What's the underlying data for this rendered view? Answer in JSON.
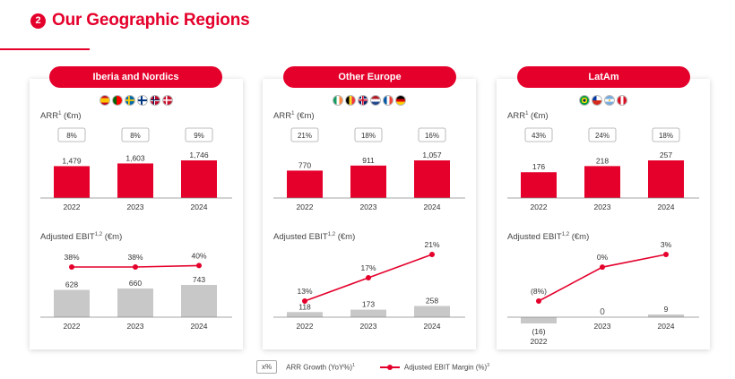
{
  "header": {
    "step": "2",
    "title": "Our Geographic Regions"
  },
  "labels": {
    "arr": "ARR",
    "arr_sup": "1",
    "arr_unit": " (€m)",
    "ebit": "Adjusted EBIT",
    "ebit_sup": "1,2",
    "ebit_unit": " (€m)"
  },
  "colors": {
    "accent": "#e4002b",
    "ebit_bar": "#c8c8c8",
    "line": "#e4002b"
  },
  "chart_data": [
    {
      "type": "bar",
      "region": "Iberia and Nordics",
      "flags": [
        "spain",
        "portugal",
        "sweden",
        "finland",
        "norway",
        "denmark"
      ],
      "categories": [
        "2022",
        "2023",
        "2024"
      ],
      "arr": {
        "values": [
          1479,
          1603,
          1746
        ],
        "labels": [
          "1,479",
          "1,603",
          "1,746"
        ],
        "growth": [
          "8%",
          "8%",
          "9%"
        ]
      },
      "ebit": {
        "values": [
          628,
          660,
          743
        ],
        "labels": [
          "628",
          "660",
          "743"
        ],
        "margin": [
          38,
          38,
          40
        ],
        "margin_labels": [
          "38%",
          "38%",
          "40%"
        ]
      }
    },
    {
      "type": "bar",
      "region": "Other Europe",
      "flags": [
        "ireland",
        "belgium",
        "uk",
        "netherlands",
        "france",
        "germany"
      ],
      "categories": [
        "2022",
        "2023",
        "2024"
      ],
      "arr": {
        "values": [
          770,
          911,
          1057
        ],
        "labels": [
          "770",
          "911",
          "1,057"
        ],
        "growth": [
          "21%",
          "18%",
          "16%"
        ]
      },
      "ebit": {
        "values": [
          118,
          173,
          258
        ],
        "labels": [
          "118",
          "173",
          "258"
        ],
        "margin": [
          13,
          17,
          21
        ],
        "margin_labels": [
          "13%",
          "17%",
          "21%"
        ]
      }
    },
    {
      "type": "bar",
      "region": "LatAm",
      "flags": [
        "brazil",
        "chile",
        "argentina",
        "peru"
      ],
      "categories": [
        "2022",
        "2023",
        "2024"
      ],
      "arr": {
        "values": [
          176,
          218,
          257
        ],
        "labels": [
          "176",
          "218",
          "257"
        ],
        "growth": [
          "43%",
          "24%",
          "18%"
        ]
      },
      "ebit": {
        "values": [
          -16,
          0,
          9
        ],
        "labels": [
          "(16)",
          "0",
          "9"
        ],
        "margin": [
          -8,
          0,
          3
        ],
        "margin_labels": [
          "(8%)",
          "0%",
          "3%"
        ]
      }
    }
  ],
  "legend": {
    "box_text": "x%",
    "growth_text": "ARR Growth (YoY%)",
    "growth_sup": "1",
    "margin_text": "Adjusted EBIT Margin (%)",
    "margin_sup": "3"
  }
}
